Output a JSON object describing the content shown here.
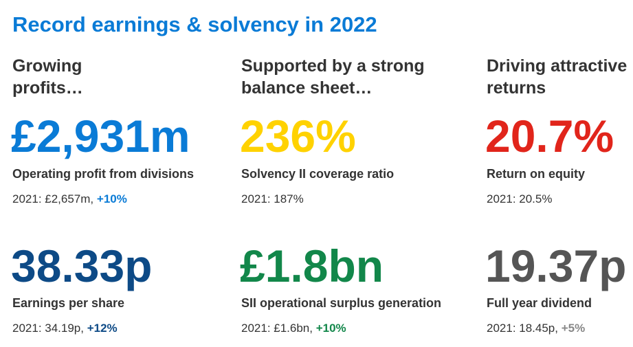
{
  "title": "Record earnings & solvency in 2022",
  "columns": [
    {
      "heading_line1": "Growing",
      "heading_line2": "profits…"
    },
    {
      "heading_line1": "Supported by a strong",
      "heading_line2": "balance sheet…"
    },
    {
      "heading_line1": "Driving attractive",
      "heading_line2": "returns"
    }
  ],
  "metrics": [
    {
      "value": "£2,931m",
      "label": "Operating profit from divisions",
      "prior": "2021: £2,657m,",
      "change": "+10%",
      "value_color": "#0a7bd6",
      "change_color": "#0a7bd6"
    },
    {
      "value": "236%",
      "label": "Solvency II coverage ratio",
      "prior": "2021: 187%",
      "change": "",
      "value_color": "#ffd200",
      "change_color": "#333333"
    },
    {
      "value": "20.7%",
      "label": "Return on equity",
      "prior": "2021: 20.5%",
      "change": "",
      "value_color": "#e1251b",
      "change_color": "#333333"
    },
    {
      "value": "38.33p",
      "label": "Earnings per share",
      "prior": "2021: 34.19p,",
      "change": "+12%",
      "value_color": "#0d4a86",
      "change_color": "#0d4a86"
    },
    {
      "value": "£1.8bn",
      "label": "SII operational surplus generation",
      "prior": "2021: £1.6bn,",
      "change": "+10%",
      "value_color": "#12874a",
      "change_color": "#12874a"
    },
    {
      "value": "19.37p",
      "label": "Full year dividend",
      "prior": "2021: 18.45p,",
      "change": "+5%",
      "value_color": "#555555",
      "change_color": "#888888"
    }
  ]
}
